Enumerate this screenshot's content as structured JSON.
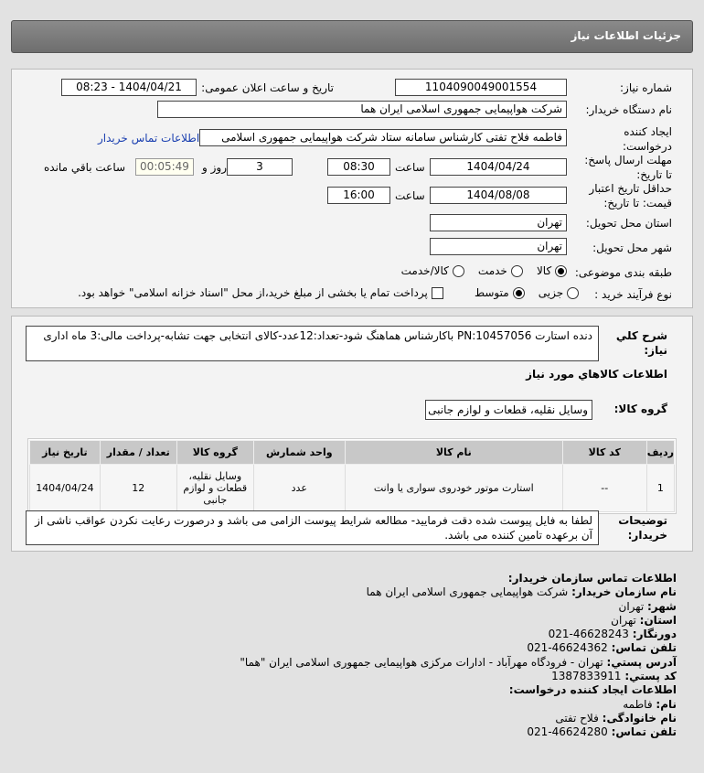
{
  "header": {
    "title": "جزئیات اطلاعات نیاز"
  },
  "form": {
    "need_number_label": "شماره نیاز:",
    "need_number": "1104090049001554",
    "announce_label": "تاریخ و ساعت اعلان عمومی:",
    "announce_value": "1404/04/21 - 08:23",
    "buyer_label": "نام دستگاه خریدار:",
    "buyer_value": "شرکت هواپیمایی جمهوری اسلامی ایران هما",
    "creator_label_1": "ایجاد کننده",
    "creator_label_2": "درخواست:",
    "creator_value": "فاطمه فلاح تفتی کارشناس سامانه ستاد شرکت هواپیمایی جمهوری اسلامی",
    "contact_link": "اطلاعات تماس خریدار",
    "deadline_label_1": "مهلت ارسال پاسخ:",
    "deadline_label_2": "تا تاریخ:",
    "deadline_date": "1404/04/24",
    "time_label": "ساعت",
    "deadline_time": "08:30",
    "days": "3",
    "days_label": "روز و",
    "remaining": "00:05:49",
    "remaining_label": "ساعت باقي مانده",
    "validity_label_1": "حداقل تاریخ اعتبار",
    "validity_label_2": "قیمت: تا تاریخ:",
    "validity_date": "1404/08/08",
    "validity_time": "16:00",
    "province_label": "استان محل تحویل:",
    "province": "تهران",
    "city_label": "شهر محل تحویل:",
    "city": "تهران",
    "category_label": "طبقه بندی موضوعی:",
    "category_options": [
      "کالا",
      "خدمت",
      "کالا/خدمت"
    ],
    "category_selected": "کالا",
    "process_label": "نوع فرآیند خرید :",
    "process_options": [
      "جزیی",
      "متوسط"
    ],
    "process_selected": "متوسط",
    "payment_note": "پرداخت تمام یا بخشی از مبلغ خرید،از محل \"اسناد خزانه اسلامی\" خواهد بود."
  },
  "details": {
    "desc_label_1": "شرح کلي",
    "desc_label_2": "نیاز:",
    "desc": "دنده استارت PN:10457056 باکارشناس هماهنگ شود-تعداد:12عدد-کالای انتخابی جهت تشابه-پرداخت مالی:3 ماه اداری",
    "goods_heading": "اطلاعات کالاهاي مورد نیاز",
    "group_label": "گروه کالا:",
    "group_value": "وسایل نقلیه، قطعات و لوازم جانبی",
    "table": {
      "headers": [
        "ردیف",
        "کد کالا",
        "نام کالا",
        "واحد شمارش",
        "گروه کالا",
        "تعداد / مقدار",
        "تاریخ نیاز"
      ],
      "rows": [
        [
          "1",
          "--",
          "استارت موتور خودروی سواری یا وانت",
          "عدد",
          "وسایل نقلیه، قطعات و لوازم جانبی",
          "12",
          "1404/04/24"
        ]
      ]
    },
    "notes_label_1": "توضیحات",
    "notes_label_2": "خریدار:",
    "notes": "لطفا به فایل پیوست شده دقت فرمایید- مطالعه شرایط پیوست الزامی می باشد و درصورت رعایت نکردن عواقب ناشی از آن برعهده تامین کننده می باشد."
  },
  "contact": {
    "heading": "اطلاعات تماس سازمان خریدار:",
    "org_k": "نام سازمان خریدار:",
    "org": "شرکت هواپیمایی جمهوری اسلامی ایران هما",
    "city_k": "شهر:",
    "city": "تهران",
    "province_k": "استان:",
    "province": "تهران",
    "fax_k": "دورنگار:",
    "fax": "46628243-021",
    "phone_k": "تلفن تماس:",
    "phone": "46624362-021",
    "address_k": "آدرس پستي:",
    "address": "تهران - فرودگاه مهرآباد - ادارات مرکزی هواپیمایی جمهوری اسلامی ایران \"هما\"",
    "postal_k": "کد پستي:",
    "postal": "1387833911",
    "creator_heading": "اطلاعات ایجاد کننده درخواست:",
    "name_k": "نام:",
    "name": "فاطمه",
    "family_k": "نام خانوادگی:",
    "family": "فلاح تفتی",
    "cphone_k": "تلفن تماس:",
    "cphone": "46624280-021"
  }
}
